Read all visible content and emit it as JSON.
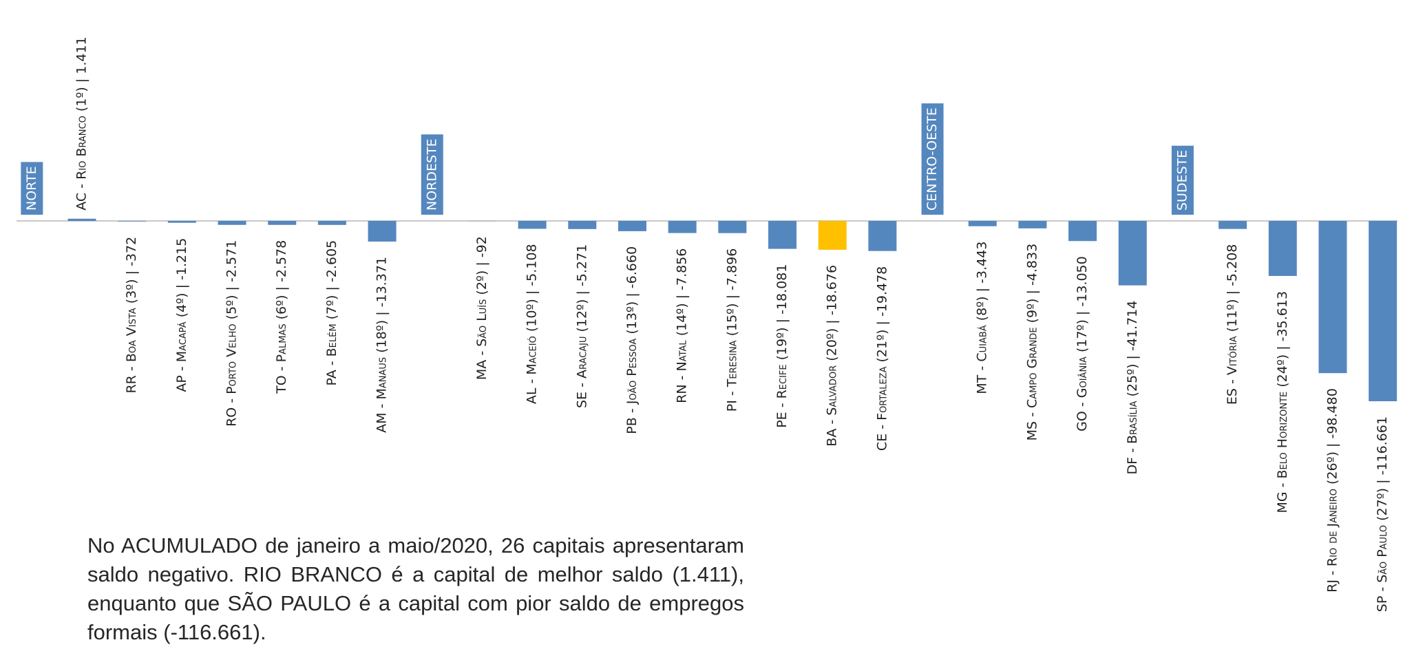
{
  "chart_data": {
    "type": "bar",
    "categories": [
      "NORTE",
      "AC - Rio Branco (1º) | 1.411",
      "RR - Boa Vista (3º) | -372",
      "AP - Macapá (4º) | -1.215",
      "RO - Porto Velho (5º) | -2.571",
      "TO - Palmas (6º) | -2.578",
      "PA - Belém (7º) | -2.605",
      "AM - Manaus (18º) | -13.371",
      "NORDESTE",
      "MA - São Luís (2º) | -92",
      "AL - Maceió (10º) | -5.108",
      "SE - Aracaju (12º) | -5.271",
      "PB - João Pessoa (13º) | -6.660",
      "RN - Natal (14º) | -7.856",
      "PI - Teresina (15º) | -7.896",
      "PE - Recife (19º) | -18.081",
      "BA - Salvador (20º) | -18.676",
      "CE - Fortaleza (21º) | -19.478",
      "CENTRO-OESTE",
      "MT - Cuiabá (8º) | -3.443",
      "MS - Campo Grande (9º) | -4.833",
      "GO - Goiânia (17º) | -13.050",
      "DF - Brasília (25º) | -41.714",
      "SUDESTE",
      "ES - Vitória (11º) | -5.208",
      "MG - Belo Horizonte (24º) | -35.613",
      "RJ - Rio de Janeiro (26º) | -98.480",
      "SP - São Paulo (27º) | -116.661"
    ],
    "values": [
      null,
      1411,
      -372,
      -1215,
      -2571,
      -2578,
      -2605,
      -13371,
      null,
      -92,
      -5108,
      -5271,
      -6660,
      -7856,
      -7896,
      -18081,
      -18676,
      -19478,
      null,
      -3443,
      -4833,
      -13050,
      -41714,
      null,
      -5208,
      -35613,
      -98480,
      -116661
    ],
    "colors": [
      "#5587bf",
      "#5587bf",
      "#5587bf",
      "#5587bf",
      "#5587bf",
      "#5587bf",
      "#5587bf",
      "#5587bf",
      "#5587bf",
      "#5587bf",
      "#5587bf",
      "#5587bf",
      "#5587bf",
      "#5587bf",
      "#5587bf",
      "#5587bf",
      "#ffc000",
      "#5587bf",
      "#5587bf",
      "#5587bf",
      "#5587bf",
      "#5587bf",
      "#5587bf",
      "#5587bf",
      "#5587bf",
      "#5587bf",
      "#5587bf",
      "#5587bf"
    ],
    "ylim": [
      -120000,
      10000
    ],
    "annotation": "No ACUMULADO de janeiro a maio/2020, 26 capitais apresentaram saldo negativo. RIO BRANCO é a capital de melhor saldo (1.411), enquanto que SÃO PAULO é a capital com pior saldo de empregos formais (-116.661)."
  }
}
